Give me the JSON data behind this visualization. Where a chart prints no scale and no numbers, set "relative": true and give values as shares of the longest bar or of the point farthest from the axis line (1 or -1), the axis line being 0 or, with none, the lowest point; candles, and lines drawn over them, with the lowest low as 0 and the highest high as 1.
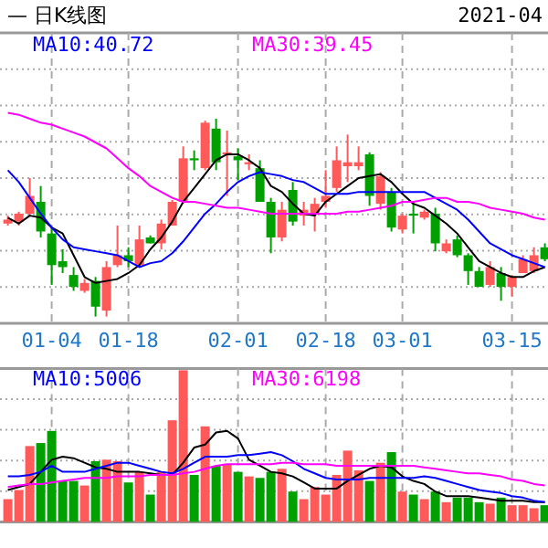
{
  "chart_data": [
    {
      "type": "candlestick",
      "title": "— 日K线图",
      "subtitle": "2021-04",
      "relative": true,
      "grid": true,
      "legend": "top",
      "tick_labels": "x",
      "categories": [
        null,
        null,
        null,
        null,
        "01-04",
        null,
        null,
        null,
        null,
        null,
        null,
        "01-18",
        null,
        null,
        null,
        null,
        null,
        null,
        null,
        null,
        null,
        "02-01",
        null,
        null,
        null,
        null,
        null,
        null,
        null,
        "02-18",
        null,
        null,
        null,
        null,
        null,
        null,
        "03-01",
        null,
        null,
        null,
        null,
        null,
        null,
        null,
        null,
        null,
        "03-15",
        null,
        null,
        null
      ],
      "colors": [
        "#ff5a5a",
        "#ff5a5a",
        "#ff5a5a",
        "#00a000",
        "#00a000",
        "#00a000",
        "#00a000",
        "#ff5a5a",
        "#00a000",
        "#ff5a5a",
        "#ff5a5a",
        "#00a000",
        "#ff5a5a",
        "#00a000",
        "#ff5a5a",
        "#ff5a5a",
        "#ff5a5a",
        "#00a000",
        "#ff5a5a",
        "#00a000",
        "#ff5a5a",
        "#00a000",
        "#ff5a5a",
        "#00a000",
        "#00a000",
        "#ff5a5a",
        "#00a000",
        "#ff5a5a",
        "#ff5a5a",
        "#ff5a5a",
        "#ff5a5a",
        "#ff5a5a",
        "#ff5a5a",
        "#00a000",
        "#ff5a5a",
        "#00a000",
        "#ff5a5a",
        "#00a000",
        "#ff5a5a",
        "#00a000",
        "#ff5a5a",
        "#00a000",
        "#00a000",
        "#00a000",
        "#ff5a5a",
        "#00a000",
        "#ff5a5a",
        "#ff5a5a",
        "#ff5a5a",
        "#00a000"
      ],
      "ohlc": [
        [
          0.47,
          0.51,
          0.46,
          0.49
        ],
        [
          0.48,
          0.53,
          0.46,
          0.52
        ],
        [
          0.52,
          0.7,
          0.51,
          0.61
        ],
        [
          0.58,
          0.66,
          0.4,
          0.43
        ],
        [
          0.42,
          0.45,
          0.16,
          0.26
        ],
        [
          0.28,
          0.34,
          0.22,
          0.25
        ],
        [
          0.21,
          0.25,
          0.13,
          0.15
        ],
        [
          0.13,
          0.19,
          0.12,
          0.17
        ],
        [
          0.18,
          0.2,
          0,
          0.05
        ],
        [
          0.03,
          0.28,
          0,
          0.25
        ],
        [
          0.26,
          0.46,
          0.25,
          0.31
        ],
        [
          0.31,
          0.35,
          0.25,
          0.28
        ],
        [
          0.26,
          0.46,
          0.25,
          0.39
        ],
        [
          0.4,
          0.41,
          0.37,
          0.37
        ],
        [
          0.37,
          0.49,
          0.34,
          0.47
        ],
        [
          0.46,
          0.59,
          0.46,
          0.58
        ],
        [
          0.58,
          0.86,
          0.57,
          0.8
        ],
        [
          0.8,
          0.84,
          0.74,
          0.79
        ],
        [
          0.75,
          0.99,
          0.74,
          0.98
        ],
        [
          0.95,
          1,
          0.74,
          0.78
        ],
        [
          0.82,
          0.94,
          0.61,
          0.83
        ],
        [
          0.81,
          0.85,
          0.69,
          0.79
        ],
        [
          0.77,
          0.82,
          0.74,
          0.78
        ],
        [
          0.75,
          0.79,
          0.58,
          0.58
        ],
        [
          0.58,
          0.6,
          0.32,
          0.4
        ],
        [
          0.4,
          0.58,
          0.38,
          0.54
        ],
        [
          0.64,
          0.68,
          0.46,
          0.48
        ],
        [
          0.51,
          0.58,
          0.46,
          0.54
        ],
        [
          0.52,
          0.6,
          0.43,
          0.57
        ],
        [
          0.58,
          0.74,
          0.55,
          0.61
        ],
        [
          0.65,
          0.86,
          0.63,
          0.79
        ],
        [
          0.76,
          0.92,
          0.68,
          0.78
        ],
        [
          0.76,
          0.86,
          0.74,
          0.78
        ],
        [
          0.82,
          0.83,
          0.56,
          0.61
        ],
        [
          0.57,
          0.73,
          0.54,
          0.71
        ],
        [
          0.63,
          0.65,
          0.43,
          0.45
        ],
        [
          0.44,
          0.52,
          0.42,
          0.51
        ],
        [
          0.52,
          0.58,
          0.42,
          0.51
        ],
        [
          0.5,
          0.54,
          0.49,
          0.53
        ],
        [
          0.52,
          0.55,
          0.33,
          0.37
        ],
        [
          0.33,
          0.39,
          0.32,
          0.37
        ],
        [
          0.39,
          0.41,
          0.3,
          0.31
        ],
        [
          0.31,
          0.32,
          0.16,
          0.23
        ],
        [
          0.23,
          0.25,
          0.15,
          0.15
        ],
        [
          0.16,
          0.28,
          0.15,
          0.25
        ],
        [
          0.22,
          0.25,
          0.08,
          0.15
        ],
        [
          0.15,
          0.21,
          0.1,
          0.2
        ],
        [
          0.22,
          0.31,
          0.22,
          0.29
        ],
        [
          0.23,
          0.35,
          0.22,
          0.31
        ],
        [
          0.35,
          0.37,
          0.28,
          0.29
        ]
      ],
      "series": [
        {
          "type": "line",
          "color": "#000000",
          "values": [
            0.5,
            0.47,
            0.51,
            0.5,
            0.45,
            0.42,
            0.31,
            0.2,
            0.17,
            0.18,
            0.19,
            0.22,
            0.26,
            0.34,
            0.4,
            0.48,
            0.58,
            0.65,
            0.72,
            0.79,
            0.82,
            0.82,
            0.79,
            0.75,
            0.66,
            0.63,
            0.57,
            0.52,
            0.51,
            0.58,
            0.62,
            0.66,
            0.7,
            0.71,
            0.72,
            0.68,
            0.62,
            0.57,
            0.55,
            0.51,
            0.47,
            0.42,
            0.35,
            0.28,
            0.25,
            0.22,
            0.2,
            0.2,
            0.23,
            0.25
          ]
        },
        {
          "type": "line",
          "name": "MA10:40.72",
          "color": "#0000ff",
          "values": [
            0.74,
            0.68,
            0.6,
            0.52,
            0.45,
            0.39,
            0.35,
            0.34,
            0.33,
            0.32,
            0.31,
            0.28,
            0.25,
            0.27,
            0.28,
            0.32,
            0.38,
            0.45,
            0.52,
            0.57,
            0.63,
            0.68,
            0.71,
            0.73,
            0.72,
            0.71,
            0.69,
            0.68,
            0.65,
            0.62,
            0.62,
            0.62,
            0.63,
            0.63,
            0.63,
            0.63,
            0.63,
            0.63,
            0.63,
            0.6,
            0.57,
            0.54,
            0.49,
            0.43,
            0.37,
            0.34,
            0.31,
            0.29,
            0.27,
            0.25
          ]
        },
        {
          "type": "line",
          "name": "MA30:39.45",
          "color": "#ff00ff",
          "values": [
            1.03,
            1.02,
            1.0,
            0.98,
            0.97,
            0.95,
            0.93,
            0.91,
            0.88,
            0.85,
            0.8,
            0.75,
            0.71,
            0.66,
            0.63,
            0.6,
            0.58,
            0.58,
            0.57,
            0.56,
            0.55,
            0.55,
            0.54,
            0.53,
            0.52,
            0.52,
            0.52,
            0.52,
            0.52,
            0.52,
            0.52,
            0.53,
            0.53,
            0.54,
            0.55,
            0.56,
            0.58,
            0.58,
            0.59,
            0.6,
            0.6,
            0.58,
            0.58,
            0.57,
            0.55,
            0.54,
            0.53,
            0.52,
            0.5,
            0.49
          ]
        }
      ]
    },
    {
      "type": "bar",
      "relative": true,
      "grid": true,
      "legend": "top",
      "tick_labels": false,
      "categories": [
        null,
        null,
        null,
        null,
        null,
        null,
        null,
        null,
        null,
        null,
        null,
        null,
        null,
        null,
        null,
        null,
        null,
        null,
        null,
        null,
        null,
        null,
        null,
        null,
        null,
        null,
        null,
        null,
        null,
        null,
        null,
        null,
        null,
        null,
        null,
        null,
        null,
        null,
        null,
        null,
        null,
        null,
        null,
        null,
        null,
        null,
        null,
        null,
        null,
        null
      ],
      "values": [
        0.15,
        0.21,
        0.5,
        0.52,
        0.6,
        0.27,
        0.27,
        0.24,
        0.4,
        0.41,
        0.4,
        0.26,
        0.33,
        0.18,
        0.33,
        0.67,
        1,
        0.31,
        0.63,
        0.37,
        0.38,
        0.33,
        0.3,
        0.29,
        0.33,
        0.35,
        0.2,
        0.15,
        0.23,
        0.18,
        0.31,
        0.47,
        0.34,
        0.27,
        0.39,
        0.46,
        0.2,
        0.18,
        0.15,
        0.2,
        0.13,
        0.16,
        0.16,
        0.13,
        0.12,
        0.16,
        0.11,
        0.11,
        0.09,
        0.11
      ],
      "colors": [
        "#ff5a5a",
        "#ff5a5a",
        "#ff5a5a",
        "#00a000",
        "#00a000",
        "#00a000",
        "#00a000",
        "#ff5a5a",
        "#00a000",
        "#ff5a5a",
        "#ff5a5a",
        "#00a000",
        "#ff5a5a",
        "#00a000",
        "#ff5a5a",
        "#ff5a5a",
        "#ff5a5a",
        "#00a000",
        "#ff5a5a",
        "#00a000",
        "#ff5a5a",
        "#00a000",
        "#ff5a5a",
        "#00a000",
        "#00a000",
        "#ff5a5a",
        "#00a000",
        "#ff5a5a",
        "#ff5a5a",
        "#ff5a5a",
        "#ff5a5a",
        "#ff5a5a",
        "#ff5a5a",
        "#00a000",
        "#ff5a5a",
        "#00a000",
        "#ff5a5a",
        "#00a000",
        "#ff5a5a",
        "#00a000",
        "#ff5a5a",
        "#00a000",
        "#00a000",
        "#00a000",
        "#ff5a5a",
        "#00a000",
        "#ff5a5a",
        "#ff5a5a",
        "#ff5a5a",
        "#00a000"
      ],
      "series": [
        {
          "type": "line",
          "color": "#000000",
          "values": [
            0.21,
            0.23,
            0.25,
            0.33,
            0.41,
            0.43,
            0.42,
            0.39,
            0.36,
            0.35,
            0.33,
            0.33,
            0.33,
            0.32,
            0.31,
            0.31,
            0.39,
            0.49,
            0.51,
            0.59,
            0.6,
            0.55,
            0.41,
            0.37,
            0.33,
            0.32,
            0.3,
            0.26,
            0.22,
            0.22,
            0.22,
            0.27,
            0.31,
            0.35,
            0.37,
            0.36,
            0.3,
            0.27,
            0.25,
            0.2,
            0.17,
            0.17,
            0.17,
            0.16,
            0.15,
            0.14,
            0.14,
            0.14,
            0.13,
            0.13
          ]
        },
        {
          "type": "line",
          "name": "MA10:5006",
          "color": "#0000ff",
          "values": [
            0.3,
            0.3,
            0.31,
            0.33,
            0.37,
            0.33,
            0.33,
            0.33,
            0.35,
            0.37,
            0.39,
            0.39,
            0.37,
            0.35,
            0.33,
            0.32,
            0.35,
            0.39,
            0.43,
            0.43,
            0.43,
            0.44,
            0.44,
            0.45,
            0.46,
            0.44,
            0.4,
            0.35,
            0.32,
            0.29,
            0.28,
            0.28,
            0.28,
            0.29,
            0.29,
            0.29,
            0.29,
            0.29,
            0.3,
            0.29,
            0.27,
            0.25,
            0.23,
            0.21,
            0.2,
            0.19,
            0.17,
            0.16,
            0.14,
            0.13
          ]
        },
        {
          "type": "line",
          "name": "MA30:6198",
          "color": "#ff00ff",
          "values": [
            0.23,
            0.24,
            0.25,
            0.25,
            0.26,
            0.27,
            0.28,
            0.29,
            0.29,
            0.29,
            0.3,
            0.3,
            0.3,
            0.31,
            0.31,
            0.31,
            0.32,
            0.33,
            0.35,
            0.37,
            0.38,
            0.38,
            0.38,
            0.38,
            0.38,
            0.39,
            0.39,
            0.38,
            0.38,
            0.38,
            0.37,
            0.37,
            0.37,
            0.37,
            0.37,
            0.37,
            0.37,
            0.37,
            0.36,
            0.35,
            0.34,
            0.33,
            0.32,
            0.32,
            0.31,
            0.3,
            0.28,
            0.27,
            0.25,
            0.24
          ]
        }
      ]
    }
  ]
}
